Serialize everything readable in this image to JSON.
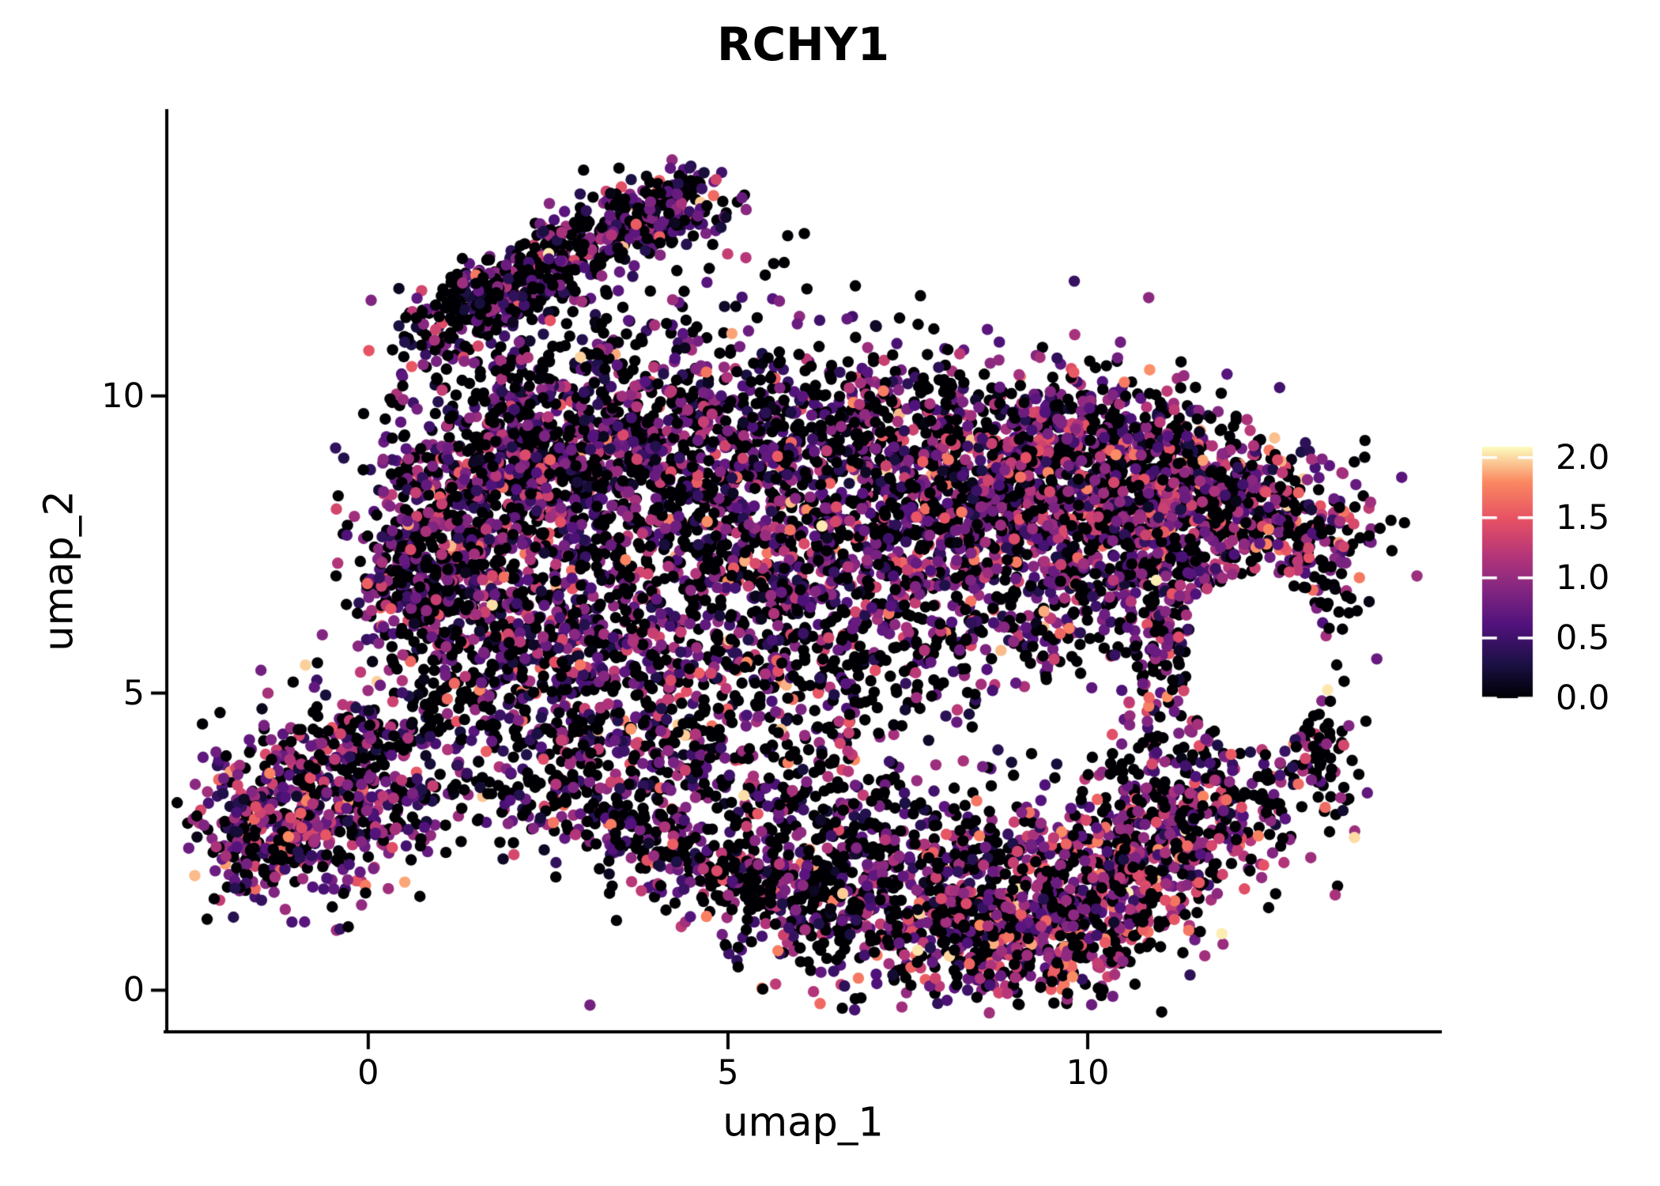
{
  "chart_data": {
    "type": "scatter",
    "title": "RCHY1",
    "xlabel": "umap_1",
    "ylabel": "umap_2",
    "xlim": [
      -2.8,
      14.9
    ],
    "ylim": [
      -0.7,
      14.8
    ],
    "grid": false,
    "background": "#ffffff",
    "axis_color": "#000000",
    "x_ticks": [
      {
        "value": 0,
        "label": "0"
      },
      {
        "value": 5,
        "label": "5"
      },
      {
        "value": 10,
        "label": "10"
      }
    ],
    "y_ticks": [
      {
        "value": 0,
        "label": "0"
      },
      {
        "value": 5,
        "label": "5"
      },
      {
        "value": 10,
        "label": "10"
      }
    ],
    "legend": {
      "position": "right",
      "orientation": "vertical",
      "vmin": 0,
      "vmax": 2.09,
      "ticks": [
        {
          "value": 0.0,
          "label": "0.0"
        },
        {
          "value": 0.5,
          "label": "0.5"
        },
        {
          "value": 1.0,
          "label": "1.0"
        },
        {
          "value": 1.5,
          "label": "1.5"
        },
        {
          "value": 2.0,
          "label": "2.0"
        }
      ],
      "colormap": "magma",
      "stops": [
        {
          "t": 0.0,
          "color": "#000004"
        },
        {
          "t": 0.14,
          "color": "#1d1147"
        },
        {
          "t": 0.29,
          "color": "#51127c"
        },
        {
          "t": 0.43,
          "color": "#822681"
        },
        {
          "t": 0.57,
          "color": "#b63679"
        },
        {
          "t": 0.71,
          "color": "#e65164"
        },
        {
          "t": 0.86,
          "color": "#fb8861"
        },
        {
          "t": 1.0,
          "color": "#fcfdbf"
        }
      ],
      "tick_mark_color": "#ffffff"
    },
    "points": {
      "radius_px": 7.2,
      "seed": 1337,
      "value_sigma": 0.4,
      "hot_min": 1.3,
      "hot_max": 2.05
    },
    "void_region": {
      "cx": 12.35,
      "cy": 5.55,
      "rx": 1.0,
      "ry": 1.45
    },
    "clusters": [
      {
        "name": "arm-1",
        "cx": 1.45,
        "cy": 11.45,
        "sx": 0.55,
        "sy": 0.28,
        "rot": 38,
        "n": 170,
        "p0": 0.46,
        "mu": 0.72,
        "hot": 0.02
      },
      {
        "name": "arm-2",
        "cx": 2.5,
        "cy": 12.2,
        "sx": 0.75,
        "sy": 0.33,
        "rot": 38,
        "n": 260,
        "p0": 0.45,
        "mu": 0.72,
        "hot": 0.02
      },
      {
        "name": "arm-3",
        "cx": 3.85,
        "cy": 13.0,
        "sx": 0.65,
        "sy": 0.3,
        "rot": 28,
        "n": 230,
        "p0": 0.44,
        "mu": 0.72,
        "hot": 0.02
      },
      {
        "name": "arm-scatter",
        "cx": 2.8,
        "cy": 11.0,
        "sx": 1.1,
        "sy": 0.7,
        "rot": 30,
        "n": 80,
        "p0": 0.55,
        "mu": 0.6,
        "hot": 0.02
      },
      {
        "name": "arm-bridge",
        "cx": 3.0,
        "cy": 10.3,
        "sx": 0.9,
        "sy": 0.5,
        "rot": 20,
        "n": 100,
        "p0": 0.5,
        "mu": 0.65,
        "hot": 0.02
      },
      {
        "name": "arm-east-scatter",
        "cx": 5.3,
        "cy": 11.4,
        "sx": 0.8,
        "sy": 0.9,
        "rot": 0,
        "n": 45,
        "p0": 0.6,
        "mu": 0.6,
        "hot": 0.02
      },
      {
        "name": "tl-lobe",
        "cx": 2.6,
        "cy": 8.9,
        "sx": 1.1,
        "sy": 0.85,
        "rot": 15,
        "n": 880,
        "p0": 0.4,
        "mu": 0.78,
        "hot": 0.03
      },
      {
        "name": "left-edge",
        "cx": 1.1,
        "cy": 7.2,
        "sx": 0.55,
        "sy": 1.0,
        "rot": 0,
        "n": 370,
        "p0": 0.4,
        "mu": 0.8,
        "hot": 0.03
      },
      {
        "name": "left-bump",
        "cx": 0.35,
        "cy": 7.0,
        "sx": 0.3,
        "sy": 0.5,
        "rot": 0,
        "n": 80,
        "p0": 0.45,
        "mu": 0.7,
        "hot": 0.02
      },
      {
        "name": "left-mid",
        "cx": 2.2,
        "cy": 6.3,
        "sx": 1.0,
        "sy": 0.9,
        "rot": 0,
        "n": 500,
        "p0": 0.42,
        "mu": 0.75,
        "hot": 0.03
      },
      {
        "name": "left-lower",
        "cx": 3.2,
        "cy": 4.6,
        "sx": 1.1,
        "sy": 0.9,
        "rot": -30,
        "n": 320,
        "p0": 0.5,
        "mu": 0.72,
        "hot": 0.03
      },
      {
        "name": "diag-edge",
        "cx": 2.6,
        "cy": 3.4,
        "sx": 1.3,
        "sy": 0.45,
        "rot": -35,
        "n": 150,
        "p0": 0.55,
        "mu": 0.7,
        "hot": 0.03
      },
      {
        "name": "center-upper",
        "cx": 5.3,
        "cy": 7.8,
        "sx": 1.3,
        "sy": 1.3,
        "rot": 0,
        "n": 780,
        "p0": 0.45,
        "mu": 0.75,
        "hot": 0.03
      },
      {
        "name": "center-top-band",
        "cx": 6.3,
        "cy": 9.5,
        "sx": 1.6,
        "sy": 0.6,
        "rot": 0,
        "n": 400,
        "p0": 0.5,
        "mu": 0.7,
        "hot": 0.02
      },
      {
        "name": "center-mid",
        "cx": 5.8,
        "cy": 5.6,
        "sx": 1.4,
        "sy": 1.1,
        "rot": 0,
        "n": 420,
        "p0": 0.52,
        "mu": 0.72,
        "hot": 0.03
      },
      {
        "name": "center-low",
        "cx": 5.3,
        "cy": 3.3,
        "sx": 1.2,
        "sy": 0.8,
        "rot": -20,
        "n": 250,
        "p0": 0.58,
        "mu": 0.7,
        "hot": 0.04
      },
      {
        "name": "right-lobe",
        "cx": 8.7,
        "cy": 7.8,
        "sx": 1.5,
        "sy": 1.2,
        "rot": 10,
        "n": 1250,
        "p0": 0.4,
        "mu": 0.85,
        "hot": 0.04
      },
      {
        "name": "right-top-band",
        "cx": 9.8,
        "cy": 9.3,
        "sx": 1.3,
        "sy": 0.55,
        "rot": -12,
        "n": 320,
        "p0": 0.48,
        "mu": 0.75,
        "hot": 0.03
      },
      {
        "name": "right-top-slope",
        "cx": 11.3,
        "cy": 8.9,
        "sx": 1.0,
        "sy": 0.45,
        "rot": -20,
        "n": 200,
        "p0": 0.47,
        "mu": 0.8,
        "hot": 0.04
      },
      {
        "name": "right-inner",
        "cx": 10.9,
        "cy": 7.6,
        "sx": 0.9,
        "sy": 1.0,
        "rot": 0,
        "n": 480,
        "p0": 0.42,
        "mu": 0.9,
        "hot": 0.05
      },
      {
        "name": "right-upper-edge",
        "cx": 12.2,
        "cy": 8.1,
        "sx": 0.8,
        "sy": 0.55,
        "rot": -25,
        "n": 250,
        "p0": 0.45,
        "mu": 0.9,
        "hot": 0.05
      },
      {
        "name": "right-arc-top",
        "cx": 13.05,
        "cy": 7.0,
        "sx": 0.35,
        "sy": 0.7,
        "rot": 0,
        "n": 130,
        "p0": 0.45,
        "mu": 0.9,
        "hot": 0.06
      },
      {
        "name": "right-arc-bottom",
        "cx": 13.1,
        "cy": 4.6,
        "sx": 0.3,
        "sy": 0.9,
        "rot": 10,
        "n": 130,
        "p0": 0.5,
        "mu": 0.85,
        "hot": 0.06
      },
      {
        "name": "void-rim-west",
        "cx": 11.3,
        "cy": 5.6,
        "sx": 0.45,
        "sy": 1.0,
        "rot": 0,
        "n": 190,
        "p0": 0.45,
        "mu": 0.85,
        "hot": 0.04
      },
      {
        "name": "below-void",
        "cx": 11.6,
        "cy": 3.4,
        "sx": 1.0,
        "sy": 0.6,
        "rot": 15,
        "n": 210,
        "p0": 0.5,
        "mu": 0.9,
        "hot": 0.06
      },
      {
        "name": "bottom-left-band",
        "cx": 7.0,
        "cy": 1.9,
        "sx": 1.3,
        "sy": 0.8,
        "rot": 10,
        "n": 480,
        "p0": 0.52,
        "mu": 0.8,
        "hot": 0.05
      },
      {
        "name": "bottom-dip",
        "cx": 8.6,
        "cy": 0.9,
        "sx": 1.0,
        "sy": 0.55,
        "rot": -5,
        "n": 400,
        "p0": 0.45,
        "mu": 0.95,
        "hot": 0.08
      },
      {
        "name": "bottom-hot",
        "cx": 9.9,
        "cy": 1.6,
        "sx": 1.0,
        "sy": 0.8,
        "rot": 20,
        "n": 480,
        "p0": 0.38,
        "mu": 1.05,
        "hot": 0.1
      },
      {
        "name": "bottom-right-slope",
        "cx": 11.0,
        "cy": 2.4,
        "sx": 0.8,
        "sy": 0.6,
        "rot": 25,
        "n": 250,
        "p0": 0.45,
        "mu": 0.95,
        "hot": 0.07
      },
      {
        "name": "bottom-streak-1",
        "cx": 5.6,
        "cy": 1.6,
        "sx": 0.9,
        "sy": 0.35,
        "rot": -15,
        "n": 140,
        "p0": 0.6,
        "mu": 0.75,
        "hot": 0.04
      },
      {
        "name": "bottom-streak-2",
        "cx": 4.3,
        "cy": 2.3,
        "sx": 0.7,
        "sy": 0.3,
        "rot": -25,
        "n": 90,
        "p0": 0.6,
        "mu": 0.8,
        "hot": 0.05
      },
      {
        "name": "bl-cluster-main",
        "cx": -0.7,
        "cy": 3.2,
        "sx": 0.75,
        "sy": 0.75,
        "rot": 0,
        "n": 410,
        "p0": 0.34,
        "mu": 0.85,
        "hot": 0.04
      },
      {
        "name": "bl-cluster-west",
        "cx": -1.5,
        "cy": 2.6,
        "sx": 0.45,
        "sy": 0.55,
        "rot": 0,
        "n": 180,
        "p0": 0.36,
        "mu": 0.8,
        "hot": 0.03
      },
      {
        "name": "bl-cluster-tail",
        "cx": 0.1,
        "cy": 4.3,
        "sx": 0.5,
        "sy": 0.35,
        "rot": 20,
        "n": 90,
        "p0": 0.45,
        "mu": 0.75,
        "hot": 0.03
      },
      {
        "name": "bl-bridge",
        "cx": 1.3,
        "cy": 3.1,
        "sx": 0.8,
        "sy": 0.5,
        "rot": -10,
        "n": 70,
        "p0": 0.6,
        "mu": 0.7,
        "hot": 0.03
      }
    ]
  }
}
